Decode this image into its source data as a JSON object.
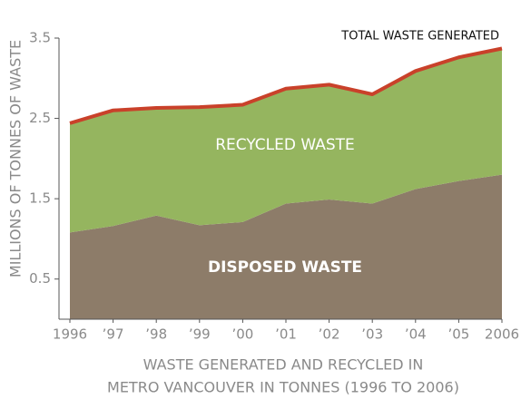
{
  "chart_data": {
    "type": "area",
    "stacked": true,
    "annotation": "TOTAL WASTE GENERATED",
    "total_line_color": "#c9412a",
    "ylabel": "MILLIONS OF TONNES OF WASTE",
    "caption": [
      "WASTE GENERATED AND RECYCLED IN",
      "METRO VANCOUVER IN TONNES (1996 TO 2006)"
    ],
    "categories": [
      "1996",
      "’97",
      "’98",
      "’99",
      "’00",
      "’01",
      "’02",
      "’03",
      "’04",
      "’05",
      "2006"
    ],
    "series": [
      {
        "name": "DISPOSED WASTE",
        "color": "#8d7c69",
        "values": [
          1.08,
          1.16,
          1.29,
          1.17,
          1.21,
          1.44,
          1.49,
          1.44,
          1.62,
          1.72,
          1.8
        ]
      },
      {
        "name": "RECYCLED WASTE",
        "color": "#95b55f",
        "values": [
          1.36,
          1.44,
          1.34,
          1.47,
          1.46,
          1.43,
          1.43,
          1.36,
          1.47,
          1.54,
          1.57
        ]
      }
    ],
    "ylim": [
      0,
      3.5
    ],
    "yticks": [
      0.5,
      1.5,
      2.5,
      3.5
    ]
  }
}
